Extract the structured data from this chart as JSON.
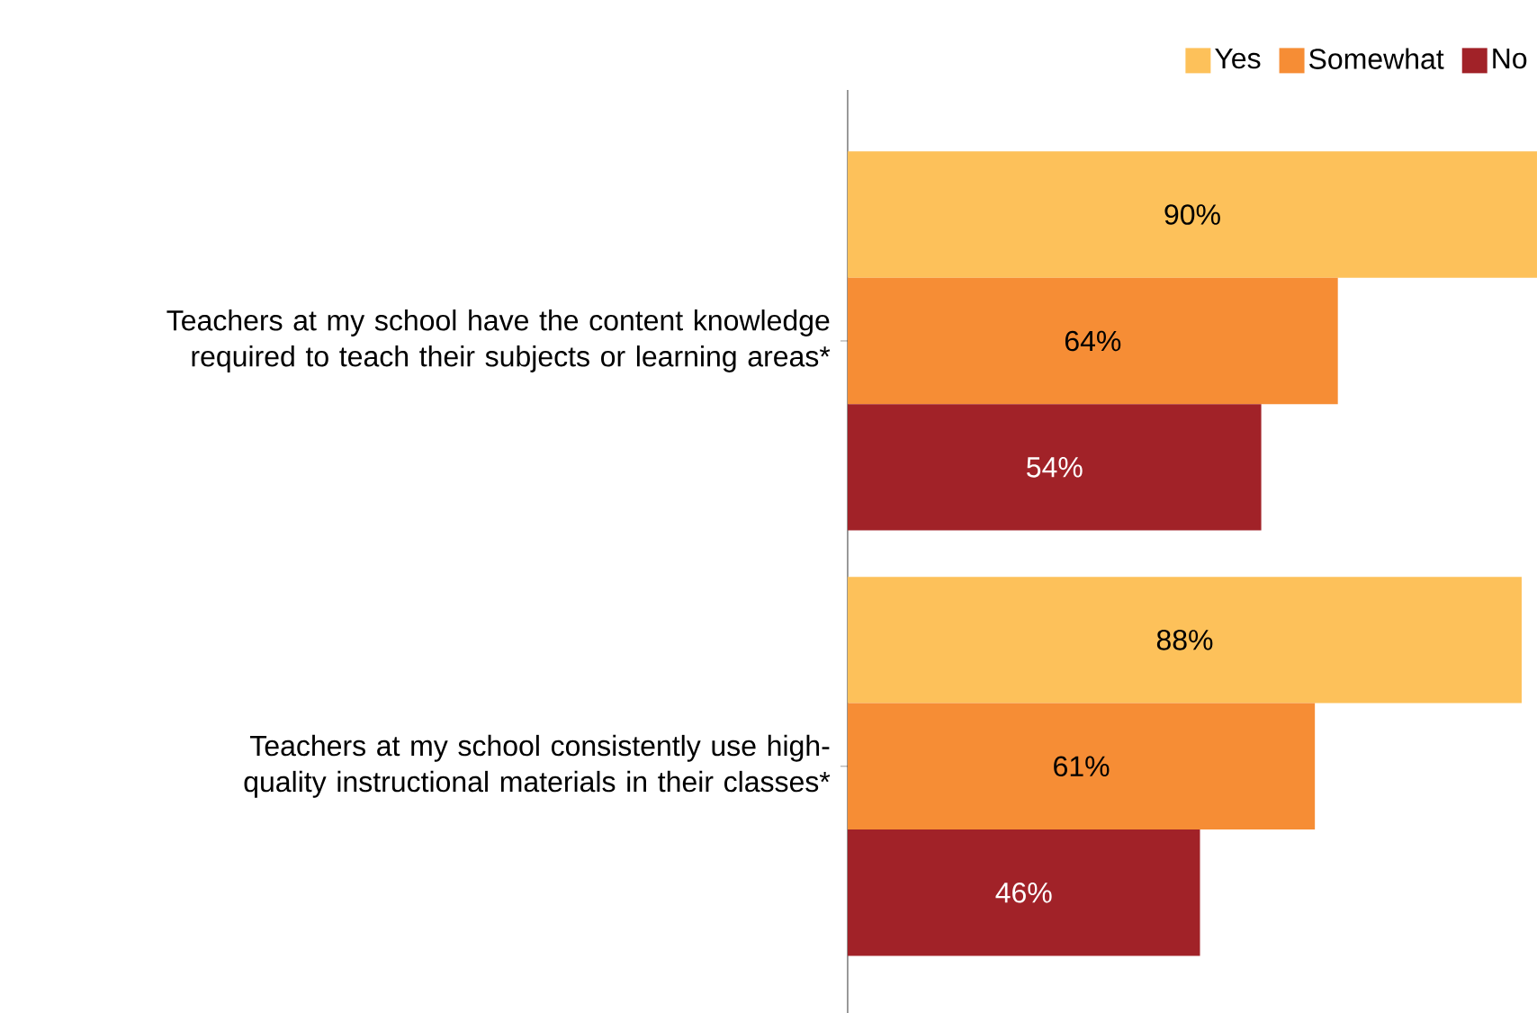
{
  "chart_data": {
    "type": "bar",
    "orientation": "horizontal",
    "categories": [
      "Teachers at my school have the content knowledge required to teach their subjects or learning areas*",
      "Teachers at my school consistently use high-quality instructional materials in their classes*"
    ],
    "series": [
      {
        "name": "Yes",
        "color": "#fdc15a",
        "values": [
          90,
          88
        ],
        "value_labels": [
          "90%",
          "88%"
        ]
      },
      {
        "name": "Somewhat",
        "color": "#f68d35",
        "values": [
          64,
          61
        ],
        "value_labels": [
          "64%",
          "61%"
        ]
      },
      {
        "name": "No",
        "color": "#a12228",
        "values": [
          54,
          46
        ],
        "value_labels": [
          "54%",
          "46%"
        ]
      }
    ],
    "xlim": [
      0,
      90
    ],
    "tick_labels": "y",
    "legend": "top right",
    "grid": false
  }
}
